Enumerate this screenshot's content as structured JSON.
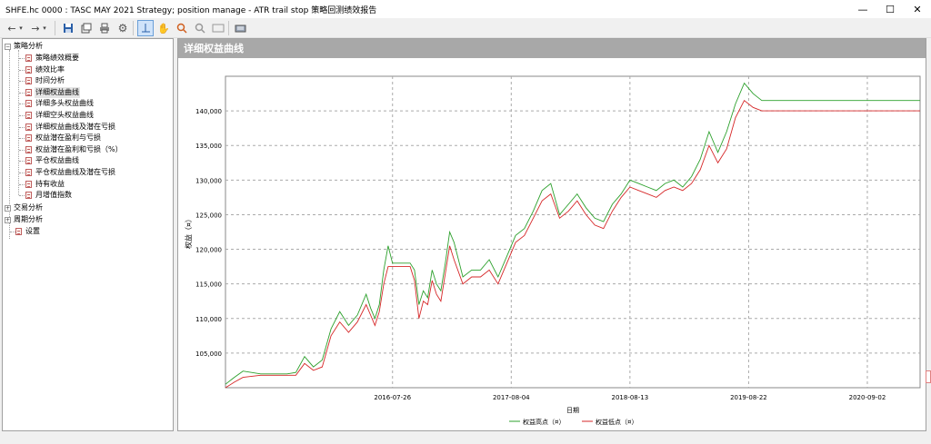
{
  "window": {
    "title": "SHFE.hc 0000 : TASC MAY 2021 Strategy; position manage - ATR trail stop 策略回测绩效报告",
    "minimize_icon": "minimize-icon",
    "maximize_icon": "maximize-icon",
    "close_icon": "close-icon"
  },
  "toolbar": {
    "buttons": [
      {
        "name": "back-button",
        "icon": "arrow-left-icon",
        "glyph": "←"
      },
      {
        "name": "back-dropdown-button",
        "icon": "chevron-down-icon",
        "glyph": "▾"
      },
      {
        "name": "forward-button",
        "icon": "arrow-right-icon",
        "glyph": "→"
      },
      {
        "name": "forward-dropdown-button",
        "icon": "chevron-down-icon",
        "glyph": "▾"
      },
      {
        "name": "save-button",
        "icon": "save-icon",
        "glyph": "💾"
      },
      {
        "name": "copy-button",
        "icon": "copy-icon",
        "glyph": "⧉"
      },
      {
        "name": "print-button",
        "icon": "print-icon",
        "glyph": "🖶"
      },
      {
        "name": "settings-button",
        "icon": "gear-icon",
        "glyph": "⚙"
      },
      {
        "name": "crosshair-button",
        "icon": "crosshair-icon",
        "glyph": "┘"
      },
      {
        "name": "pan-button",
        "icon": "hand-icon",
        "glyph": "✋"
      },
      {
        "name": "zoom-in-button",
        "icon": "zoom-in-icon",
        "glyph": "🔍"
      },
      {
        "name": "zoom-out-button",
        "icon": "zoom-out-icon",
        "glyph": "🔎"
      },
      {
        "name": "fit-button",
        "icon": "fit-icon",
        "glyph": "▭"
      },
      {
        "name": "export-button",
        "icon": "export-icon",
        "glyph": "⇶"
      }
    ]
  },
  "tree": {
    "root": "策略分析",
    "items": [
      {
        "label": "策略绩效概要"
      },
      {
        "label": "绩效比率"
      },
      {
        "label": "时间分析"
      },
      {
        "label": "详细权益曲线",
        "selected": true
      },
      {
        "label": "详细多头权益曲线"
      },
      {
        "label": "详细空头权益曲线"
      },
      {
        "label": "详细权益曲线及潜在亏损"
      },
      {
        "label": "权益潜在盈利与亏损"
      },
      {
        "label": "权益潜在盈利和亏损（%）"
      },
      {
        "label": "平仓权益曲线"
      },
      {
        "label": "平仓权益曲线及潜在亏损"
      },
      {
        "label": "持有收益"
      },
      {
        "label": "月增值指数"
      }
    ],
    "groups": [
      "交易分析",
      "周期分析"
    ],
    "settings": "设置"
  },
  "panel": {
    "title": "详细权益曲线"
  },
  "chart_data": {
    "type": "line",
    "ylabel": "权益（¤）",
    "xlabel": "日期",
    "y_ticks": [
      "105,000",
      "110,000",
      "115,000",
      "120,000",
      "125,000",
      "130,000",
      "135,000",
      "140,000"
    ],
    "x_ticks": [
      "2016-07-26",
      "2017-08-04",
      "2018-08-13",
      "2019-08-22",
      "2020-09-02"
    ],
    "ylim": [
      100000,
      145000
    ],
    "grid": true,
    "legend_position": "bottom-center",
    "series": [
      {
        "name": "权益高点（¤）",
        "color": "#2ca02c"
      },
      {
        "name": "权益低点（¤）",
        "color": "#d62728"
      }
    ],
    "x_index": [
      0,
      10,
      20,
      40,
      55,
      60,
      65,
      70,
      80,
      90,
      100,
      110,
      120,
      130,
      140,
      150,
      160,
      165,
      170,
      175,
      180,
      185,
      190,
      195,
      200,
      205,
      210,
      215,
      220,
      225,
      230,
      235,
      240,
      245,
      250,
      255,
      260,
      270,
      280,
      290,
      300,
      310,
      320,
      330,
      340,
      350,
      360,
      370,
      380,
      390,
      400,
      410,
      420,
      430,
      440,
      450,
      460,
      470,
      480,
      490,
      500,
      510,
      520,
      530,
      540,
      550,
      560,
      570,
      580,
      590,
      600,
      610,
      620,
      630,
      640,
      650,
      660,
      670,
      680,
      690,
      700,
      710,
      720,
      730,
      740,
      745,
      750,
      755,
      760,
      765,
      770,
      775,
      780,
      785,
      790
    ],
    "high_values": [
      100500,
      101500,
      102400,
      102000,
      102000,
      102000,
      102000,
      102000,
      102200,
      104500,
      103000,
      104000,
      108500,
      111000,
      109000,
      110500,
      113500,
      111500,
      110000,
      112000,
      117000,
      120500,
      118000,
      118000,
      118000,
      118000,
      118000,
      117000,
      112000,
      114000,
      113000,
      117000,
      115000,
      114000,
      118000,
      122500,
      121000,
      116000,
      117000,
      117000,
      118500,
      116000,
      119000,
      122000,
      123000,
      125500,
      128500,
      129500,
      125000,
      126500,
      128000,
      126000,
      124500,
      124000,
      126500,
      128000,
      130000,
      129500,
      129000,
      128500,
      129500,
      130000,
      129000,
      130500,
      133000,
      137000,
      134000,
      137000,
      141000,
      144000,
      142500,
      141500,
      141500,
      141500,
      141500,
      141500,
      141500,
      141500,
      141500,
      141500,
      141500,
      141500,
      141500,
      141500,
      141500,
      141500,
      141500,
      141500,
      141500,
      141500,
      141500,
      141500,
      141500,
      141500,
      141500
    ],
    "low_values": [
      100000,
      100800,
      101500,
      101800,
      101800,
      101800,
      101800,
      101800,
      101800,
      103500,
      102500,
      103000,
      107500,
      109500,
      108000,
      109500,
      112000,
      110500,
      109000,
      111000,
      115000,
      117500,
      117500,
      117500,
      117500,
      117500,
      117500,
      115500,
      110000,
      112500,
      112000,
      115500,
      113500,
      112500,
      116500,
      120500,
      118500,
      115000,
      116000,
      116000,
      117000,
      115000,
      118000,
      121000,
      122000,
      124500,
      127000,
      128000,
      124500,
      125500,
      127000,
      125000,
      123500,
      123000,
      125500,
      127500,
      129000,
      128500,
      128000,
      127500,
      128500,
      129000,
      128500,
      129500,
      131500,
      135000,
      132500,
      134500,
      139000,
      141500,
      140500,
      140000,
      140000,
      140000,
      140000,
      140000,
      140000,
      140000,
      140000,
      140000,
      140000,
      140000,
      140000,
      140000,
      140000,
      140000,
      140000,
      140000,
      140000,
      140000,
      140000,
      140000,
      140000,
      140000,
      140000
    ]
  }
}
